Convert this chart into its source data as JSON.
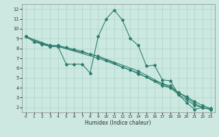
{
  "xlabel": "Humidex (Indice chaleur)",
  "bg_color": "#cce8e0",
  "line_color": "#2e7d6e",
  "grid_color": "#aad4c8",
  "xlim": [
    -0.5,
    23.5
  ],
  "ylim": [
    1.5,
    12.5
  ],
  "xticks": [
    0,
    1,
    2,
    3,
    4,
    5,
    6,
    7,
    8,
    9,
    10,
    11,
    12,
    13,
    14,
    15,
    16,
    17,
    18,
    19,
    20,
    21,
    22,
    23
  ],
  "yticks": [
    2,
    3,
    4,
    5,
    6,
    7,
    8,
    9,
    10,
    11,
    12
  ],
  "series": [
    {
      "x": [
        0,
        1,
        2,
        3,
        4,
        5,
        6,
        7,
        8,
        9,
        10,
        11,
        12,
        13,
        14,
        15,
        16,
        17,
        18,
        19,
        20,
        21,
        22,
        23
      ],
      "y": [
        9.2,
        8.7,
        8.4,
        8.2,
        8.2,
        6.4,
        6.4,
        6.4,
        5.5,
        9.2,
        11.0,
        11.9,
        10.9,
        9.0,
        8.3,
        6.2,
        6.3,
        4.8,
        4.7,
        3.3,
        2.5,
        1.8,
        2.0,
        1.8
      ]
    },
    {
      "x": [
        0,
        3,
        4,
        9,
        14,
        17,
        18,
        19,
        20,
        21,
        22,
        23
      ],
      "y": [
        9.2,
        8.2,
        8.2,
        7.0,
        5.5,
        4.2,
        4.0,
        3.3,
        2.8,
        2.2,
        2.0,
        1.8
      ]
    },
    {
      "x": [
        0,
        3,
        4,
        9,
        14,
        17,
        18,
        19,
        20,
        21,
        22,
        23
      ],
      "y": [
        9.2,
        8.3,
        8.2,
        7.2,
        5.7,
        4.4,
        4.2,
        3.5,
        3.0,
        2.4,
        2.0,
        1.8
      ]
    },
    {
      "x": [
        0,
        1,
        2,
        3,
        4,
        5,
        6,
        7,
        8,
        9,
        10,
        11,
        12,
        13,
        14,
        15,
        16,
        17,
        18,
        19,
        20,
        21,
        22,
        23
      ],
      "y": [
        9.2,
        8.7,
        8.5,
        8.3,
        8.3,
        8.1,
        7.9,
        7.7,
        7.4,
        7.2,
        6.8,
        6.5,
        6.1,
        5.8,
        5.4,
        5.1,
        4.7,
        4.4,
        4.0,
        3.5,
        3.1,
        2.6,
        2.2,
        1.9
      ]
    }
  ]
}
